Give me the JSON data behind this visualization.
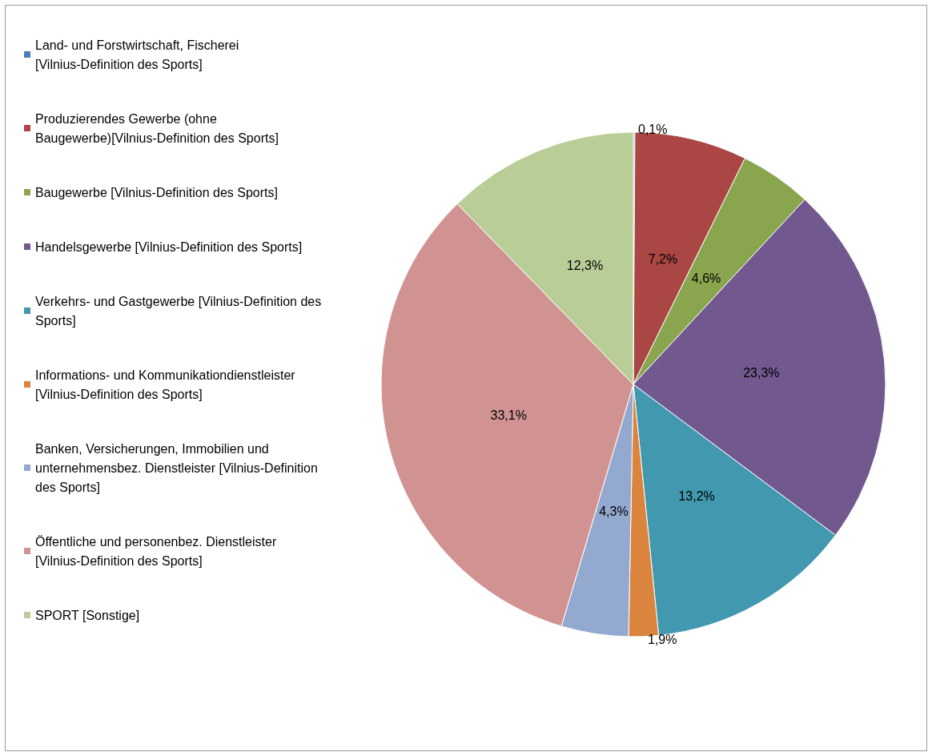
{
  "chart_data": {
    "type": "pie",
    "categories": [
      "Land- und Forstwirtschaft, Fischerei [Vilnius-Definition des Sports]",
      "Produzierendes Gewerbe (ohne Baugewerbe)[Vilnius-Definition des Sports]",
      "Baugewerbe [Vilnius-Definition des Sports]",
      "Handelsgewerbe [Vilnius-Definition des Sports]",
      "Verkehrs- und Gastgewerbe [Vilnius-Definition des Sports]",
      "Informations- und Kommunikationdienstleister [Vilnius-Definition des Sports]",
      "Banken, Versicherungen, Immobilien und unternehmensbez. Dienstleister [Vilnius-Definition des Sports]",
      "Öffentliche und personenbez. Dienstleister [Vilnius-Definition des Sports]",
      "SPORT [Sonstige]"
    ],
    "values": [
      0.1,
      7.2,
      4.6,
      23.3,
      13.2,
      1.9,
      4.3,
      33.1,
      12.3
    ],
    "value_labels": [
      "0,1%",
      "7,2%",
      "4,6%",
      "23,3%",
      "13,2%",
      "1,9%",
      "4,3%",
      "33,1%",
      "12,3%"
    ],
    "colors": [
      "#4a7ebb",
      "#aa4643",
      "#89a54e",
      "#71588f",
      "#4198af",
      "#db843d",
      "#93a9cf",
      "#d19392",
      "#b9cd96"
    ],
    "legend": "left"
  }
}
